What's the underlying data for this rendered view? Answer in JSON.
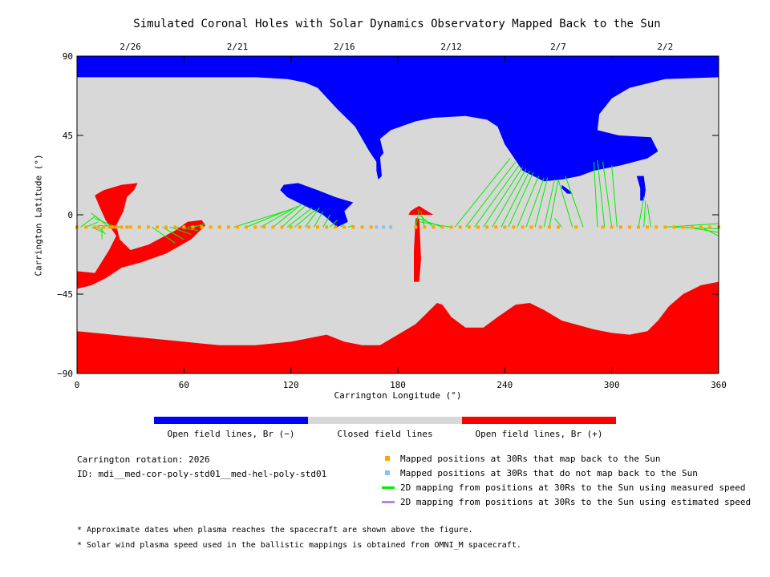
{
  "chart_data": {
    "type": "map",
    "title": "Simulated Coronal Holes with Solar Dynamics Observatory Mapped Back to the Sun",
    "xlabel": "Carrington Longitude (°)",
    "ylabel": "Carrington Latitude (°)",
    "xlim": [
      0,
      360
    ],
    "ylim": [
      -90,
      90
    ],
    "xticks": [
      0,
      60,
      120,
      180,
      240,
      300,
      360
    ],
    "yticks": [
      -90,
      -45,
      0,
      45,
      90
    ],
    "xtick_labels": [
      "0",
      "60",
      "120",
      "180",
      "240",
      "300",
      "360"
    ],
    "ytick_labels": [
      "−90",
      "−45",
      "0",
      "45",
      "90"
    ],
    "top_dates": [
      {
        "label": "2/26",
        "lon": 30
      },
      {
        "label": "2/21",
        "lon": 90
      },
      {
        "label": "2/16",
        "lon": 150
      },
      {
        "label": "2/12",
        "lon": 210
      },
      {
        "label": "2/7",
        "lon": 270
      },
      {
        "label": "2/2",
        "lon": 330
      }
    ],
    "colors": {
      "open_negative": "#0000ff",
      "closed": "#d8d8d8",
      "open_positive": "#ff0000",
      "mapped_back": "#ffa500",
      "not_mapped_back": "#87c3f0",
      "measured_speed": "#00ee00",
      "estimated_speed": "#b884e8"
    },
    "colorbar": {
      "segments": [
        {
          "label": "Open field lines, Br (−)",
          "color": "#0000ff"
        },
        {
          "label": "Closed field lines",
          "color": "#d8d8d8"
        },
        {
          "label": "Open field lines, Br (+)",
          "color": "#ff0000"
        }
      ]
    },
    "regions": {
      "north_blue": [
        [
          0,
          90
        ],
        [
          360,
          90
        ],
        [
          360,
          78
        ],
        [
          330,
          77
        ],
        [
          310,
          72
        ],
        [
          300,
          66
        ],
        [
          293,
          57
        ],
        [
          292,
          48
        ],
        [
          304,
          45
        ],
        [
          322,
          44
        ],
        [
          326,
          36
        ],
        [
          320,
          32
        ],
        [
          305,
          28
        ],
        [
          290,
          25
        ],
        [
          282,
          22
        ],
        [
          272,
          20
        ],
        [
          262,
          19
        ],
        [
          250,
          25
        ],
        [
          240,
          40
        ],
        [
          236,
          50
        ],
        [
          230,
          54
        ],
        [
          218,
          56
        ],
        [
          200,
          55
        ],
        [
          190,
          53
        ],
        [
          176,
          48
        ],
        [
          170,
          43
        ],
        [
          172,
          35
        ],
        [
          168,
          30
        ],
        [
          164,
          36
        ],
        [
          156,
          50
        ],
        [
          146,
          60
        ],
        [
          135,
          72
        ],
        [
          128,
          75
        ],
        [
          118,
          77
        ],
        [
          100,
          78
        ],
        [
          60,
          78
        ],
        [
          20,
          78
        ],
        [
          0,
          78
        ]
      ],
      "south_red": [
        [
          0,
          -66
        ],
        [
          20,
          -68
        ],
        [
          40,
          -70
        ],
        [
          60,
          -72
        ],
        [
          80,
          -74
        ],
        [
          100,
          -74
        ],
        [
          120,
          -72
        ],
        [
          130,
          -70
        ],
        [
          140,
          -68
        ],
        [
          150,
          -72
        ],
        [
          160,
          -74
        ],
        [
          170,
          -74
        ],
        [
          180,
          -68
        ],
        [
          190,
          -62
        ],
        [
          196,
          -56
        ],
        [
          202,
          -50
        ],
        [
          205,
          -51
        ],
        [
          210,
          -58
        ],
        [
          218,
          -64
        ],
        [
          228,
          -64
        ],
        [
          236,
          -58
        ],
        [
          246,
          -51
        ],
        [
          254,
          -50
        ],
        [
          262,
          -54
        ],
        [
          272,
          -60
        ],
        [
          290,
          -65
        ],
        [
          300,
          -67
        ],
        [
          310,
          -68
        ],
        [
          320,
          -66
        ],
        [
          326,
          -60
        ],
        [
          332,
          -52
        ],
        [
          340,
          -45
        ],
        [
          350,
          -40
        ],
        [
          360,
          -38
        ],
        [
          360,
          -90
        ],
        [
          0,
          -90
        ]
      ],
      "blue_isolated": [
        [
          116,
          17
        ],
        [
          124,
          18
        ],
        [
          135,
          14
        ],
        [
          145,
          10
        ],
        [
          155,
          7
        ],
        [
          150,
          2
        ],
        [
          152,
          -4
        ],
        [
          146,
          -7
        ],
        [
          138,
          0
        ],
        [
          128,
          5
        ],
        [
          118,
          10
        ],
        [
          114,
          14
        ]
      ],
      "blue_sliver_a": [
        [
          168,
          33
        ],
        [
          170,
          33
        ],
        [
          171,
          22
        ],
        [
          169,
          20
        ],
        [
          168,
          25
        ]
      ],
      "blue_sliver_b": [
        [
          272,
          17
        ],
        [
          276,
          14
        ],
        [
          278,
          12
        ],
        [
          275,
          12
        ],
        [
          272,
          15
        ]
      ],
      "blue_sliver_c": [
        [
          314,
          22
        ],
        [
          318,
          22
        ],
        [
          319,
          14
        ],
        [
          318,
          8
        ],
        [
          316,
          8
        ],
        [
          316,
          15
        ]
      ],
      "red_west": [
        [
          0,
          -32
        ],
        [
          10,
          -33
        ],
        [
          18,
          -20
        ],
        [
          22,
          -12
        ],
        [
          16,
          -3
        ],
        [
          12,
          6
        ],
        [
          10,
          11
        ],
        [
          15,
          14
        ],
        [
          25,
          17
        ],
        [
          34,
          18
        ],
        [
          32,
          14
        ],
        [
          28,
          10
        ],
        [
          26,
          2
        ],
        [
          22,
          -6
        ],
        [
          24,
          -14
        ],
        [
          30,
          -20
        ],
        [
          40,
          -17
        ],
        [
          55,
          -9
        ],
        [
          62,
          -4
        ],
        [
          70,
          -3
        ],
        [
          72,
          -6
        ],
        [
          64,
          -14
        ],
        [
          50,
          -22
        ],
        [
          36,
          -27
        ],
        [
          25,
          -30
        ],
        [
          16,
          -36
        ],
        [
          8,
          -40
        ],
        [
          0,
          -42
        ]
      ],
      "red_mid_a": [
        [
          190,
          -2
        ],
        [
          192,
          -2
        ],
        [
          193,
          -25
        ],
        [
          192,
          -38
        ],
        [
          189,
          -38
        ],
        [
          189,
          -20
        ]
      ],
      "red_mid_b": [
        [
          186,
          0
        ],
        [
          200,
          0
        ],
        [
          195,
          3
        ],
        [
          192,
          5
        ],
        [
          190,
          4
        ],
        [
          187,
          2
        ]
      ],
      "red_east": [
        [
          336,
          -50
        ],
        [
          348,
          -46
        ],
        [
          360,
          -42
        ],
        [
          360,
          -62
        ],
        [
          350,
          -63
        ],
        [
          340,
          -60
        ],
        [
          334,
          -56
        ]
      ]
    },
    "spacecraft_lat": -7,
    "mapped_back_lon": [
      0,
      5,
      10,
      12,
      15,
      18,
      20,
      22,
      25,
      28,
      30,
      35,
      40,
      45,
      50,
      55,
      60,
      65,
      70,
      75,
      80,
      85,
      90,
      95,
      100,
      105,
      110,
      115,
      120,
      125,
      130,
      135,
      140,
      145,
      150,
      155,
      160,
      165,
      190,
      195,
      200,
      205,
      210,
      215,
      220,
      225,
      230,
      235,
      240,
      245,
      250,
      255,
      260,
      265,
      270,
      280,
      295,
      300,
      305,
      310,
      315,
      320,
      325,
      330,
      335,
      340,
      345,
      350,
      355,
      360
    ],
    "not_mapped_back_lon": [
      168,
      172,
      176
    ],
    "measured_speed_lines": [
      [
        2,
        -7,
        10,
        -1
      ],
      [
        5,
        -7,
        12,
        -4
      ],
      [
        8,
        -7,
        15,
        -10
      ],
      [
        12,
        -7,
        16,
        -11
      ],
      [
        14,
        -7,
        14,
        -14
      ],
      [
        18,
        -7,
        8,
        1
      ],
      [
        22,
        -7,
        10,
        -2
      ],
      [
        25,
        -7,
        12,
        -6
      ],
      [
        42,
        -7,
        55,
        -16
      ],
      [
        48,
        -7,
        60,
        -14
      ],
      [
        52,
        -7,
        64,
        -11
      ],
      [
        56,
        -7,
        68,
        -9
      ],
      [
        62,
        -7,
        70,
        -6
      ],
      [
        66,
        -7,
        72,
        -5
      ],
      [
        88,
        -7,
        120,
        3
      ],
      [
        95,
        -7,
        122,
        4
      ],
      [
        103,
        -7,
        124,
        5
      ],
      [
        110,
        -7,
        126,
        6
      ],
      [
        115,
        -7,
        128,
        5
      ],
      [
        118,
        -7,
        132,
        4
      ],
      [
        122,
        -7,
        134,
        3
      ],
      [
        128,
        -7,
        136,
        4
      ],
      [
        133,
        -7,
        138,
        2
      ],
      [
        138,
        -7,
        142,
        0
      ],
      [
        142,
        -7,
        146,
        -3
      ],
      [
        148,
        -7,
        150,
        -5
      ],
      [
        152,
        -7,
        155,
        -6
      ],
      [
        190,
        -7,
        192,
        3
      ],
      [
        195,
        -7,
        193,
        2
      ],
      [
        200,
        -7,
        192,
        0
      ],
      [
        205,
        -7,
        191,
        -2
      ],
      [
        210,
        -7,
        192,
        -4
      ],
      [
        212,
        -7,
        243,
        32
      ],
      [
        218,
        -7,
        246,
        30
      ],
      [
        223,
        -7,
        248,
        28
      ],
      [
        228,
        -7,
        250,
        27
      ],
      [
        233,
        -7,
        252,
        26
      ],
      [
        238,
        -7,
        254,
        25
      ],
      [
        242,
        -7,
        256,
        24
      ],
      [
        247,
        -7,
        259,
        22
      ],
      [
        252,
        -7,
        262,
        21
      ],
      [
        257,
        -7,
        264,
        21
      ],
      [
        262,
        -7,
        268,
        20
      ],
      [
        265,
        -7,
        270,
        20
      ],
      [
        272,
        -7,
        268,
        -2
      ],
      [
        278,
        -7,
        270,
        20
      ],
      [
        284,
        -7,
        274,
        22
      ],
      [
        292,
        -7,
        290,
        30
      ],
      [
        296,
        -7,
        292,
        31
      ],
      [
        300,
        -7,
        295,
        30
      ],
      [
        303,
        -7,
        300,
        28
      ],
      [
        315,
        -7,
        318,
        10
      ],
      [
        318,
        -7,
        319,
        8
      ],
      [
        322,
        -7,
        320,
        6
      ],
      [
        330,
        -7,
        360,
        -5
      ],
      [
        336,
        -7,
        360,
        -8
      ],
      [
        342,
        -7,
        360,
        -10
      ],
      [
        350,
        -7,
        360,
        -12
      ]
    ]
  },
  "legend": {
    "rotation_text": "Carrington rotation: 2026",
    "id_text": "ID: mdi__med-cor-poly-std01__med-hel-poly-std01",
    "items": [
      {
        "kind": "square",
        "color": "#ffa500",
        "label": "Mapped positions at 30Rs that map back to the Sun"
      },
      {
        "kind": "square",
        "color": "#87c3f0",
        "label": "Mapped positions at 30Rs that do not map back to the Sun"
      },
      {
        "kind": "line",
        "color": "#00ee00",
        "label": "2D mapping from positions at 30Rs to the Sun using measured speed"
      },
      {
        "kind": "line",
        "color": "#b884e8",
        "label": "2D mapping from positions at 30Rs to the Sun using estimated speed"
      }
    ]
  },
  "notes": {
    "note1": "* Approximate dates when plasma reaches the spacecraft are shown above the figure.",
    "note2": "* Solar wind plasma speed used in the ballistic mappings is obtained from OMNI_M spacecraft."
  }
}
